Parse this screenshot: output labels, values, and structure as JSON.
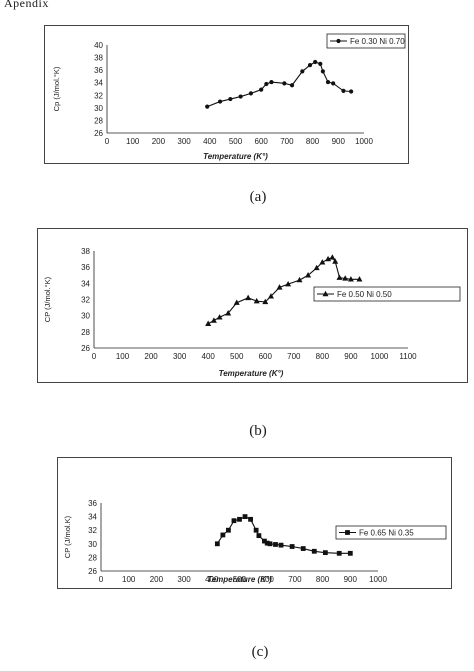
{
  "top_text": "Apendix",
  "captions": [
    "(a)",
    "(b)",
    "(c)"
  ],
  "chart_data": [
    {
      "type": "line",
      "marker": "circle",
      "title": "",
      "xlabel": "Temperature (K°)",
      "ylabel": "Cp (J/mol.°K)",
      "xlim": [
        0,
        1000
      ],
      "ylim": [
        26,
        40
      ],
      "xticks": [
        "0",
        "100",
        "200",
        "300",
        "400",
        "500",
        "600",
        "700",
        "800",
        "900",
        "1000"
      ],
      "yticks": [
        "26",
        "28",
        "30",
        "32",
        "34",
        "36",
        "38",
        "40"
      ],
      "legend_position": "top-right",
      "series": [
        {
          "name": "Fe 0.30 Ni 0.70",
          "x": [
            390,
            440,
            480,
            520,
            560,
            600,
            620,
            640,
            690,
            720,
            760,
            790,
            810,
            830,
            840,
            860,
            880,
            920,
            950
          ],
          "y": [
            30.2,
            31.0,
            31.4,
            31.8,
            32.3,
            32.9,
            33.8,
            34.1,
            33.9,
            33.6,
            35.8,
            36.8,
            37.3,
            37.0,
            35.8,
            34.1,
            33.9,
            32.7,
            32.6
          ]
        }
      ]
    },
    {
      "type": "line",
      "marker": "triangle",
      "title": "",
      "xlabel": "Temperature (K°)",
      "ylabel": "CP (J/mol.°K)",
      "xlim": [
        0,
        1100
      ],
      "ylim": [
        26,
        38
      ],
      "xticks": [
        "0",
        "100",
        "200",
        "300",
        "400",
        "500",
        "600",
        "700",
        "800",
        "900",
        "1000",
        "1100"
      ],
      "yticks": [
        "26",
        "28",
        "30",
        "32",
        "34",
        "36",
        "38"
      ],
      "legend_position": "right",
      "series": [
        {
          "name": "Fe 0.50 Ni 0.50",
          "x": [
            400,
            420,
            440,
            470,
            500,
            540,
            570,
            600,
            620,
            650,
            680,
            720,
            750,
            780,
            800,
            820,
            835,
            845,
            860,
            880,
            900,
            930
          ],
          "y": [
            29.0,
            29.4,
            29.8,
            30.3,
            31.6,
            32.2,
            31.8,
            31.7,
            32.4,
            33.5,
            33.9,
            34.4,
            35.0,
            35.9,
            36.6,
            37.0,
            37.2,
            36.7,
            34.7,
            34.6,
            34.5,
            34.5
          ]
        }
      ]
    },
    {
      "type": "line",
      "marker": "square",
      "title": "",
      "xlabel": "Temperature (K°)",
      "ylabel": "CP (J/mol.K)",
      "xlim": [
        0,
        1000
      ],
      "ylim": [
        26,
        36
      ],
      "xticks": [
        "0",
        "100",
        "200",
        "300",
        "400",
        "500",
        "600",
        "700",
        "800",
        "900",
        "1000"
      ],
      "yticks": [
        "26",
        "28",
        "30",
        "32",
        "34",
        "36"
      ],
      "legend_position": "right",
      "series": [
        {
          "name": "Fe 0.65 Ni 0.35",
          "x": [
            420,
            440,
            460,
            480,
            500,
            520,
            540,
            560,
            570,
            590,
            600,
            610,
            630,
            650,
            690,
            730,
            770,
            810,
            860,
            900
          ],
          "y": [
            30.0,
            31.3,
            32.0,
            33.4,
            33.6,
            34.0,
            33.6,
            32.0,
            31.2,
            30.4,
            30.1,
            30.0,
            29.9,
            29.8,
            29.6,
            29.3,
            28.9,
            28.7,
            28.6,
            28.6
          ]
        }
      ]
    }
  ]
}
